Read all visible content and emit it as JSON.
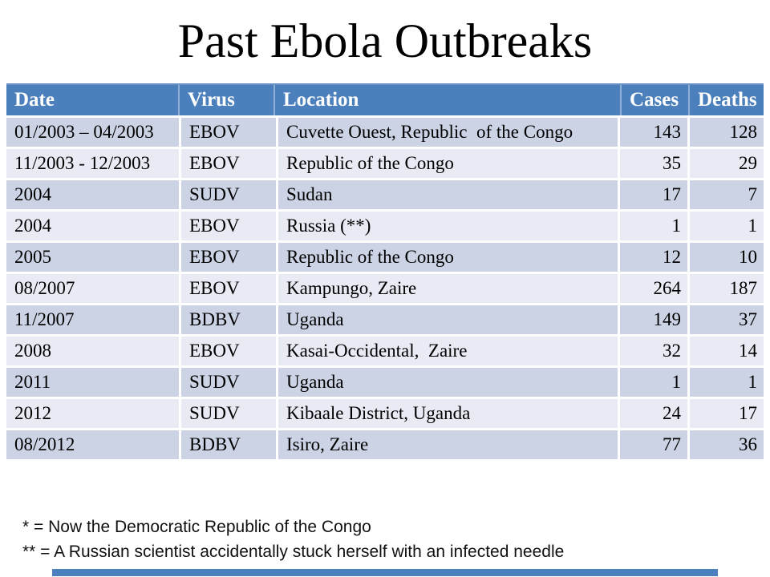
{
  "slide": {
    "title": "Past Ebola Outbreaks"
  },
  "table": {
    "columns": [
      "Date",
      "Virus",
      "Location",
      "Cases",
      "Deaths"
    ],
    "rows": [
      {
        "date": "01/2003 – 04/2003",
        "virus": "EBOV",
        "location": "Cuvette Ouest, Republic  of the Congo",
        "cases": 143,
        "deaths": 128
      },
      {
        "date": "11/2003 - 12/2003",
        "virus": "EBOV",
        "location": "Republic of the Congo",
        "cases": 35,
        "deaths": 29
      },
      {
        "date": "2004",
        "virus": "SUDV",
        "location": "Sudan",
        "cases": 17,
        "deaths": 7
      },
      {
        "date": "2004",
        "virus": "EBOV",
        "location": "Russia (**)",
        "cases": 1,
        "deaths": 1
      },
      {
        "date": "2005",
        "virus": "EBOV",
        "location": "Republic of the Congo",
        "cases": 12,
        "deaths": 10
      },
      {
        "date": "08/2007",
        "virus": "EBOV",
        "location": "Kampungo, Zaire",
        "cases": 264,
        "deaths": 187
      },
      {
        "date": "11/2007",
        "virus": "BDBV",
        "location": "Uganda",
        "cases": 149,
        "deaths": 37
      },
      {
        "date": "2008",
        "virus": "EBOV",
        "location": "Kasai-Occidental,  Zaire",
        "cases": 32,
        "deaths": 14
      },
      {
        "date": "2011",
        "virus": "SUDV",
        "location": "Uganda",
        "cases": 1,
        "deaths": 1
      },
      {
        "date": "2012",
        "virus": "SUDV",
        "location": "Kibaale District, Uganda",
        "cases": 24,
        "deaths": 17
      },
      {
        "date": "08/2012",
        "virus": "BDBV",
        "location": "Isiro, Zaire",
        "cases": 77,
        "deaths": 36
      }
    ]
  },
  "footnotes": {
    "line1": "* = Now the Democratic Republic of the Congo",
    "line2": "** = A Russian scientist accidentally stuck herself with an infected needle"
  },
  "colors": {
    "header_bg": "#4C80BC",
    "header_top_line": "#6A92C6",
    "header_sep": "#8FAFD6",
    "header_text": "#FFFFFF",
    "row_dark": "#CCD3E5",
    "row_light": "#E9EBF4",
    "accent_bar": "#4C80BC"
  }
}
